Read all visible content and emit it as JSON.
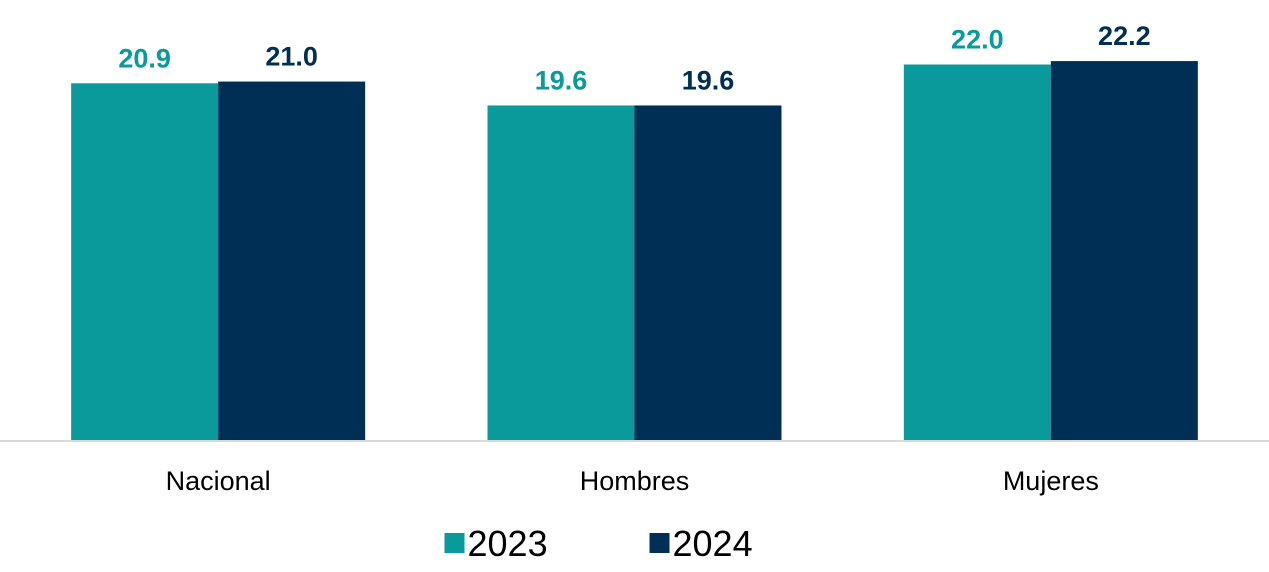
{
  "chart_data": {
    "type": "bar",
    "title": "",
    "xlabel": "",
    "ylabel": "",
    "categories": [
      "Nacional",
      "Hombres",
      "Mujeres"
    ],
    "series": [
      {
        "name": "2023",
        "values": [
          20.9,
          19.6,
          22.0
        ],
        "labels": [
          "20.9",
          "19.6",
          "22.0"
        ],
        "color": "#0a9a9c"
      },
      {
        "name": "2024",
        "values": [
          21.0,
          19.6,
          22.2
        ],
        "labels": [
          "21.0",
          "19.6",
          "22.2"
        ],
        "color": "#002f55"
      }
    ],
    "ylim": [
      0,
      24.9
    ],
    "grid": false,
    "legend": "bottom-center",
    "baseline_color": "#d9d9d9"
  }
}
